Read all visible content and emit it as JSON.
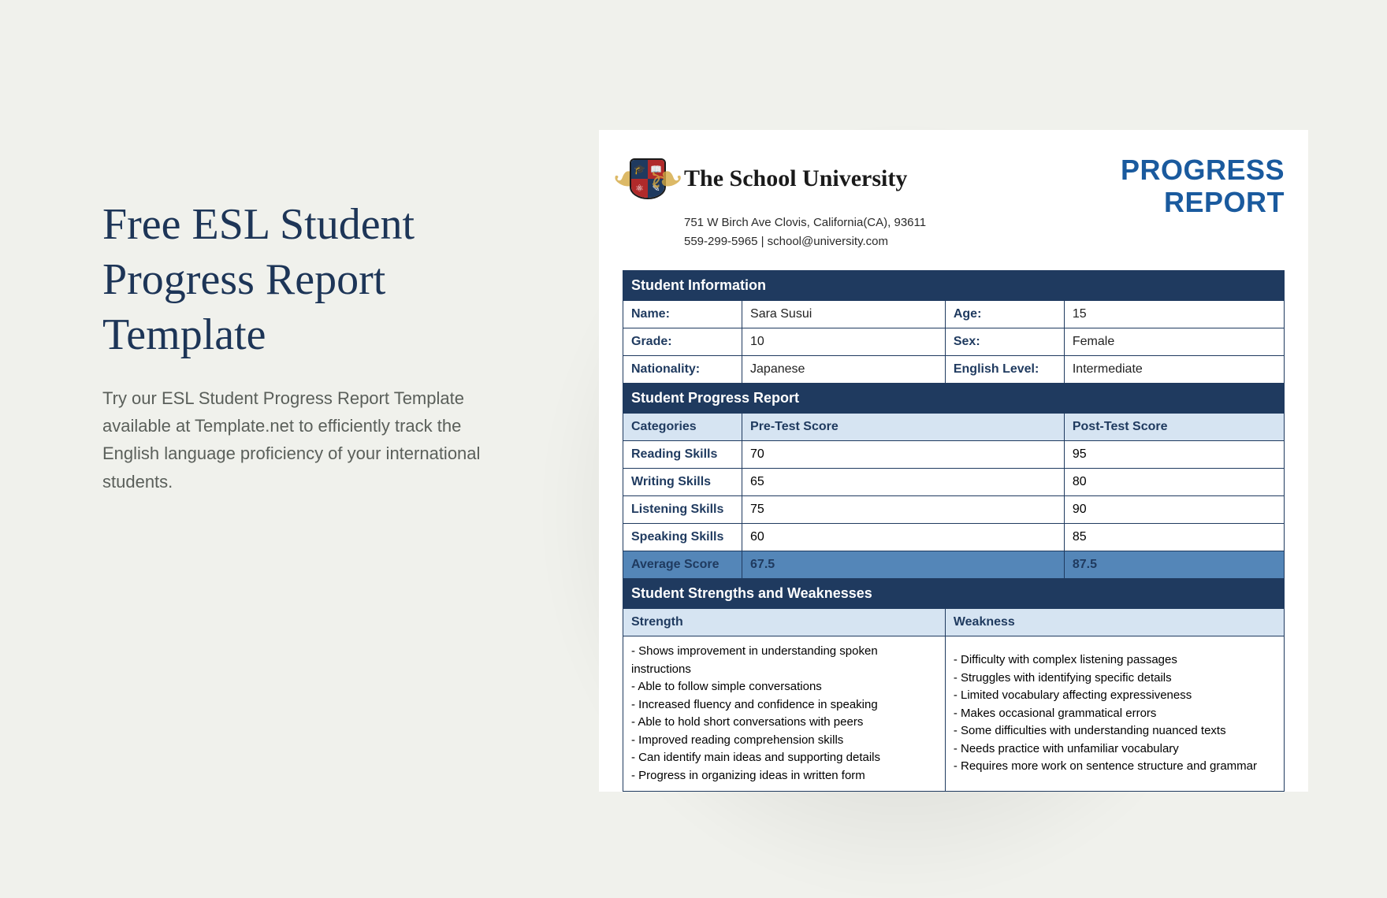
{
  "left": {
    "title": "Free ESL Student Progress Report Template",
    "description": "Try our ESL Student Progress Report Template available at Template.net to efficiently track the English language proficiency of your international students."
  },
  "doc": {
    "school_name": "The School University",
    "address": "751 W Birch Ave Clovis, California(CA), 93611",
    "contact": "559-299-5965 | school@university.com",
    "report_title_l1": "PROGRESS",
    "report_title_l2": "REPORT",
    "student_info_header": "Student Information",
    "fields": {
      "name_label": "Name:",
      "name_value": "Sara Susui",
      "age_label": "Age:",
      "age_value": "15",
      "grade_label": "Grade:",
      "grade_value": "10",
      "sex_label": "Sex:",
      "sex_value": "Female",
      "nationality_label": "Nationality:",
      "nationality_value": "Japanese",
      "level_label": "English Level:",
      "level_value": "Intermediate"
    },
    "progress_header": "Student Progress Report",
    "col_categories": "Categories",
    "col_pre": "Pre-Test Score",
    "col_post": "Post-Test Score",
    "rows": [
      {
        "cat": "Reading Skills",
        "pre": "70",
        "post": "95"
      },
      {
        "cat": "Writing Skills",
        "pre": "65",
        "post": "80"
      },
      {
        "cat": "Listening Skills",
        "pre": "75",
        "post": "90"
      },
      {
        "cat": "Speaking Skills",
        "pre": "60",
        "post": "85"
      }
    ],
    "avg_label": "Average Score",
    "avg_pre": "67.5",
    "avg_post": "87.5",
    "sw_header": "Student Strengths and Weaknesses",
    "strength_label": "Strength",
    "weakness_label": "Weakness",
    "strengths": "- Shows improvement in understanding spoken instructions\n- Able to follow simple conversations\n- Increased fluency and confidence in speaking\n- Able to hold short conversations with peers\n- Improved reading comprehension skills\n- Can identify main ideas and supporting details\n- Progress in organizing ideas in written form",
    "weaknesses": "- Difficulty with complex listening passages\n- Struggles with identifying specific details\n- Limited vocabulary affecting expressiveness\n- Makes occasional grammatical errors\n- Some difficulties with understanding nuanced texts\n- Needs practice with unfamiliar vocabulary\n- Requires more work on sentence structure and grammar"
  },
  "colors": {
    "page_bg": "#f0f1ec",
    "title_color": "#1d3557",
    "desc_color": "#5a5f5a",
    "header_dark": "#1f3a5f",
    "header_light": "#d6e4f2",
    "avg_bg": "#5486b8",
    "progress_title": "#1a5a9e"
  }
}
